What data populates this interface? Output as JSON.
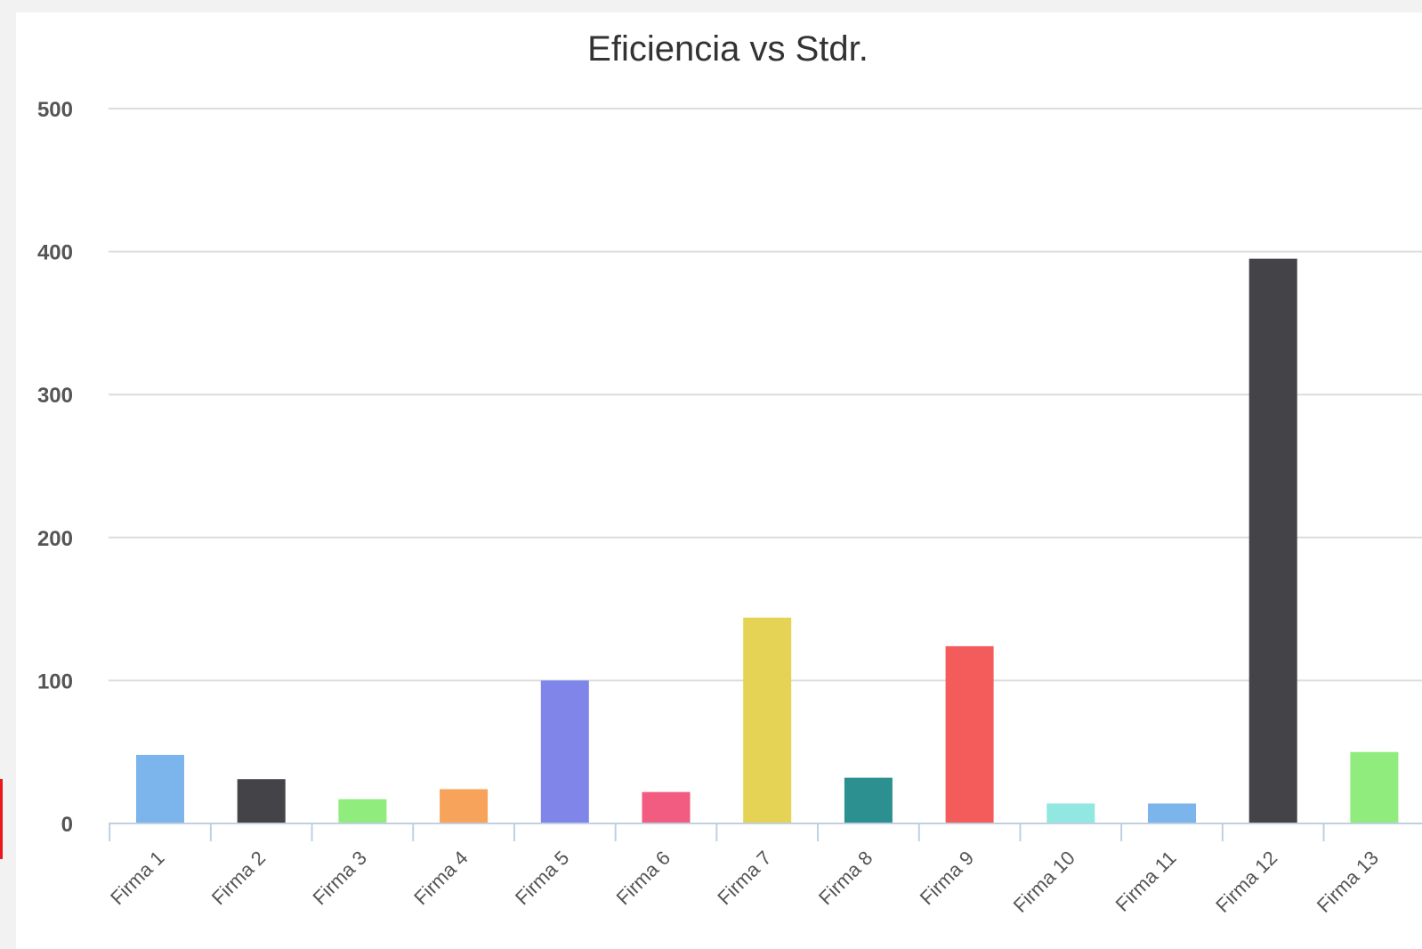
{
  "chart_data": {
    "type": "bar",
    "title": "Eficiencia vs Stdr.",
    "xlabel": "",
    "ylabel": "",
    "ylim": [
      0,
      500
    ],
    "yticks": [
      "0",
      "100",
      "200",
      "300",
      "400",
      "500"
    ],
    "grid": true,
    "categories": [
      "Firma 1",
      "Firma 2",
      "Firma 3",
      "Firma 4",
      "Firma 5",
      "Firma 6",
      "Firma 7",
      "Firma 8",
      "Firma 9",
      "Firma 10",
      "Firma 11",
      "Firma 12",
      "Firma 13"
    ],
    "values": [
      48,
      31,
      17,
      24,
      100,
      22,
      144,
      32,
      124,
      14,
      14,
      395,
      50
    ],
    "colors": [
      "#7cb5ec",
      "#434348",
      "#90ed7d",
      "#f7a35c",
      "#8085e9",
      "#f15c80",
      "#e4d354",
      "#2b908f",
      "#f45b5b",
      "#91e8e1",
      "#7cb5ec",
      "#434348",
      "#90ed7d"
    ]
  }
}
